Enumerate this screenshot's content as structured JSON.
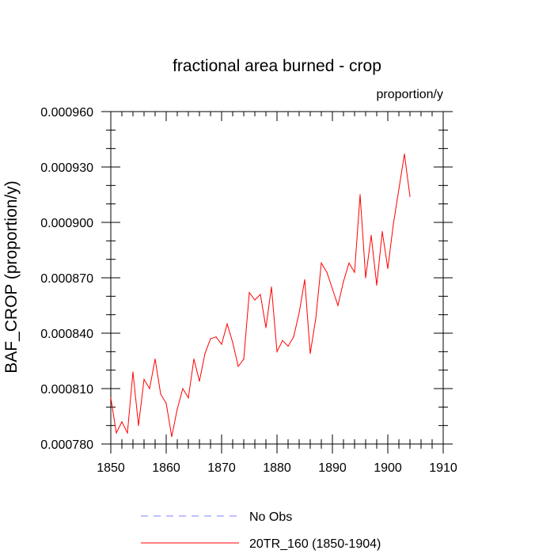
{
  "chart_data": {
    "type": "line",
    "title": "fractional area burned - crop",
    "units": "proportion/y",
    "ylabel": "BAF_CROP  (proportion/y)",
    "xlabel": "",
    "xlim": [
      1850,
      1910
    ],
    "ylim": [
      0.00078,
      0.00096
    ],
    "x_ticks": [
      1850,
      1860,
      1870,
      1880,
      1890,
      1900,
      1910
    ],
    "x_tick_labels": [
      "1850",
      "1860",
      "1870",
      "1880",
      "1890",
      "1900",
      "1910"
    ],
    "y_ticks": [
      0.00078,
      0.00081,
      0.00084,
      0.00087,
      0.0009,
      0.00093,
      0.00096
    ],
    "y_tick_labels": [
      "0.000780",
      "0.000810",
      "0.000840",
      "0.000870",
      "0.000900",
      "0.000930",
      "0.000960"
    ],
    "legend": {
      "placement": "bottom-center",
      "entries": [
        "No Obs",
        "20TR_160 (1850-1904)"
      ]
    },
    "series": [
      {
        "name": "No Obs",
        "color": "#8080ff",
        "style": "dashed",
        "x": [],
        "values": []
      },
      {
        "name": "20TR_160 (1850-1904)",
        "color": "#ff0000",
        "style": "solid",
        "x": [
          1850,
          1851,
          1852,
          1853,
          1854,
          1855,
          1856,
          1857,
          1858,
          1859,
          1860,
          1861,
          1862,
          1863,
          1864,
          1865,
          1866,
          1867,
          1868,
          1869,
          1870,
          1871,
          1872,
          1873,
          1874,
          1875,
          1876,
          1877,
          1878,
          1879,
          1880,
          1881,
          1882,
          1883,
          1884,
          1885,
          1886,
          1887,
          1888,
          1889,
          1890,
          1891,
          1892,
          1893,
          1894,
          1895,
          1896,
          1897,
          1898,
          1899,
          1900,
          1901,
          1902,
          1903,
          1904
        ],
        "values": [
          0.000805,
          0.000786,
          0.000792,
          0.000786,
          0.000819,
          0.00079,
          0.000815,
          0.00081,
          0.000826,
          0.000807,
          0.000802,
          0.000784,
          0.000799,
          0.00081,
          0.000805,
          0.000826,
          0.000814,
          0.000829,
          0.000837,
          0.000838,
          0.000834,
          0.000845,
          0.000835,
          0.000822,
          0.000826,
          0.000862,
          0.000858,
          0.000861,
          0.000843,
          0.000865,
          0.00083,
          0.000836,
          0.000833,
          0.000838,
          0.000851,
          0.000869,
          0.000829,
          0.000848,
          0.000878,
          0.000873,
          0.000864,
          0.000855,
          0.000868,
          0.000878,
          0.000873,
          0.000915,
          0.00087,
          0.000893,
          0.000866,
          0.000895,
          0.000875,
          0.000899,
          0.000918,
          0.000937,
          0.000914
        ]
      }
    ]
  }
}
